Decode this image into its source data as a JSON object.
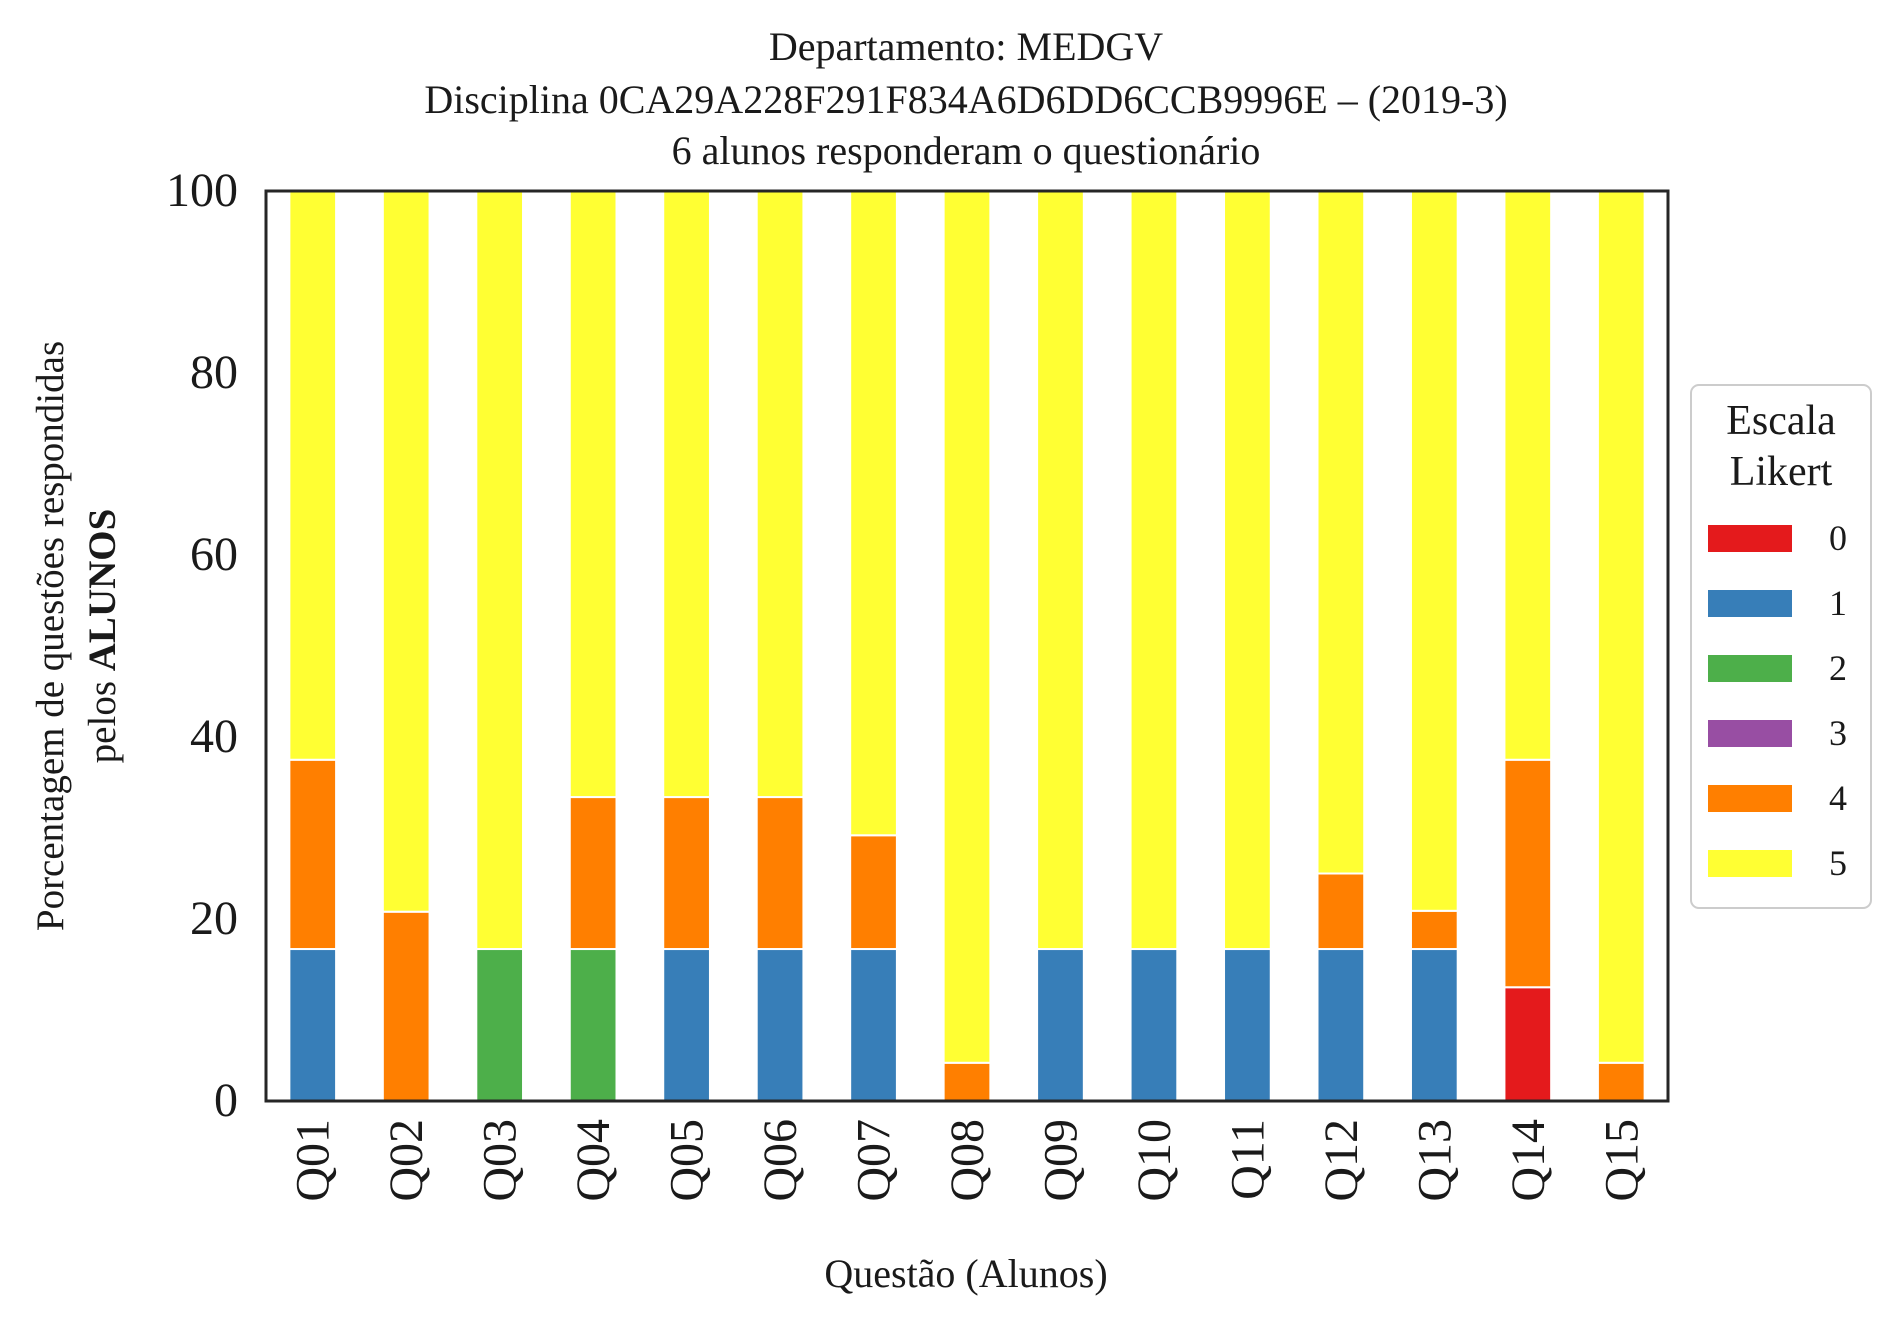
{
  "chart_data": {
    "type": "bar",
    "stacked": true,
    "title_lines": [
      "Departamento: MEDGV",
      "Disciplina 0CA29A228F291F834A6D6DD6CCB9996E – (2019-3)",
      "6 alunos responderam o questionário"
    ],
    "xlabel": "Questão (Alunos)",
    "ylabel_line1": "Porcentagem de questões respondidas",
    "ylabel_line2_prefix": "pelos ",
    "ylabel_line2_bold": "ALUNOS",
    "ylim": [
      0,
      100
    ],
    "yticks": [
      "0",
      "20",
      "40",
      "60",
      "80",
      "100"
    ],
    "categories": [
      "Q01",
      "Q02",
      "Q03",
      "Q04",
      "Q05",
      "Q06",
      "Q07",
      "Q08",
      "Q09",
      "Q10",
      "Q11",
      "Q12",
      "Q13",
      "Q14",
      "Q15"
    ],
    "series": [
      {
        "name": "0",
        "color": "#e41a1c",
        "values": [
          0,
          0,
          0,
          0,
          0,
          0,
          0,
          0,
          0,
          0,
          0,
          0,
          0,
          12.5,
          0
        ]
      },
      {
        "name": "1",
        "color": "#377eb8",
        "values": [
          16.7,
          0,
          0,
          0,
          16.7,
          16.7,
          16.7,
          0,
          16.7,
          16.7,
          16.7,
          16.7,
          16.7,
          0,
          0
        ]
      },
      {
        "name": "2",
        "color": "#4daf4a",
        "values": [
          0,
          0,
          16.7,
          16.7,
          0,
          0,
          0,
          0,
          0,
          0,
          0,
          0,
          0,
          0,
          0
        ]
      },
      {
        "name": "3",
        "color": "#984ea3",
        "values": [
          0,
          0,
          0,
          0,
          0,
          0,
          0,
          0,
          0,
          0,
          0,
          0,
          0,
          0,
          0
        ]
      },
      {
        "name": "4",
        "color": "#ff7f00",
        "values": [
          20.8,
          20.8,
          0,
          16.7,
          16.7,
          16.7,
          12.5,
          4.2,
          0,
          0,
          0,
          8.3,
          4.2,
          25.0,
          4.2
        ]
      },
      {
        "name": "5",
        "color": "#ffff33",
        "values": [
          62.5,
          79.2,
          83.3,
          66.7,
          66.7,
          66.7,
          70.8,
          95.8,
          83.3,
          83.3,
          83.3,
          75.0,
          79.2,
          62.5,
          95.8
        ]
      }
    ],
    "legend": {
      "title_lines": [
        "Escala",
        "Likert"
      ],
      "placement": "right-center"
    },
    "grid": false
  }
}
